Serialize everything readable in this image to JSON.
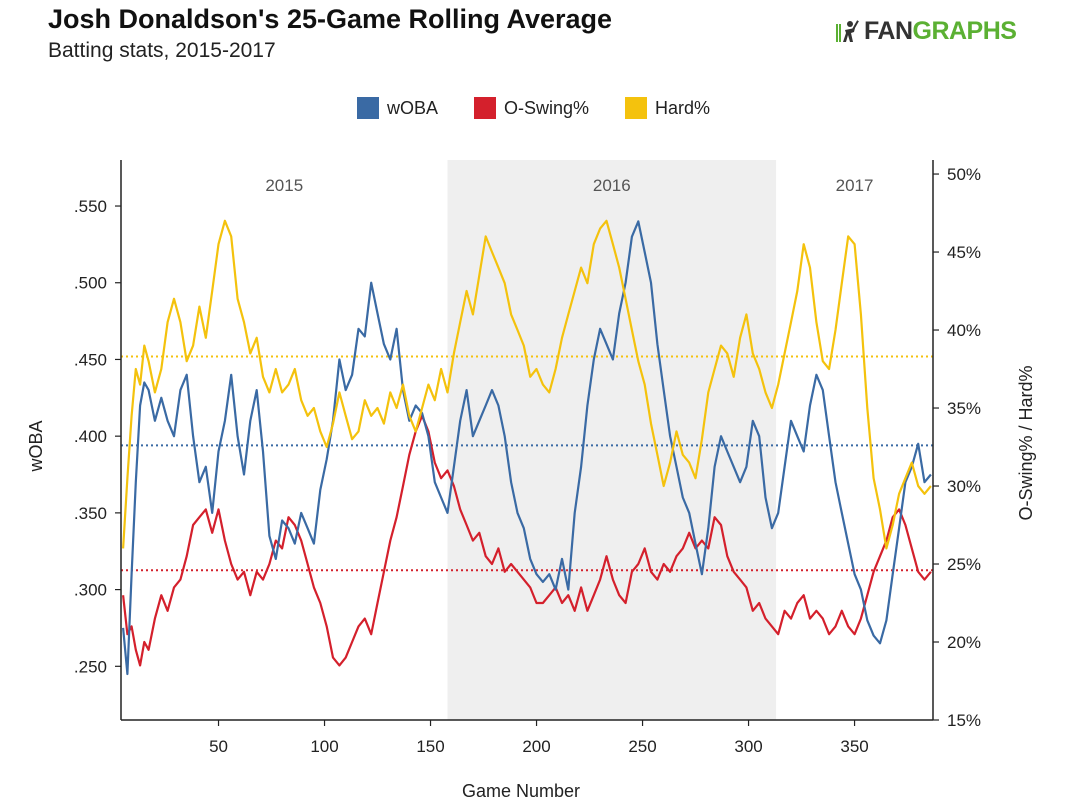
{
  "title": "Josh Donaldson's 25-Game Rolling Average",
  "subtitle": "Batting stats, 2015-2017",
  "logo": {
    "fan": "FAN",
    "graphs": "GRAPHS"
  },
  "colors": {
    "woba": "#3a6aa4",
    "oswing": "#d4202c",
    "hard": "#f4c20d",
    "shade": "#efefef"
  },
  "chart_data": {
    "type": "line",
    "xlabel": "Game Number",
    "ylabel_left": "wOBA",
    "ylabel_right": "O-Swing% / Hard%",
    "xlim": [
      4,
      387
    ],
    "ylim_left": [
      0.215,
      0.58
    ],
    "ylim_right": [
      15,
      50.9
    ],
    "x_ticks": [
      50,
      100,
      150,
      200,
      250,
      300,
      350
    ],
    "y_ticks_left": [
      ".250",
      ".300",
      ".350",
      ".400",
      ".450",
      ".500",
      ".550"
    ],
    "y_ticks_right": [
      "15%",
      "20%",
      "25%",
      "30%",
      "35%",
      "40%",
      "45%",
      "50%"
    ],
    "grid": false,
    "legend_position": "top",
    "seasons": [
      {
        "label": "2015",
        "start": 4,
        "end": 158,
        "shaded": false
      },
      {
        "label": "2016",
        "start": 158,
        "end": 313,
        "shaded": true
      },
      {
        "label": "2017",
        "start": 313,
        "end": 387,
        "shaded": false
      }
    ],
    "reference_lines": [
      {
        "series": "wOBA",
        "axis": "left",
        "value": 0.394
      },
      {
        "series": "O-Swing%",
        "axis": "right",
        "value": 24.6
      },
      {
        "series": "Hard%",
        "axis": "right",
        "value": 38.3
      }
    ],
    "series": [
      {
        "name": "wOBA",
        "axis": "left",
        "x": [
          5,
          7,
          9,
          11,
          13,
          15,
          17,
          20,
          23,
          26,
          29,
          32,
          35,
          38,
          41,
          44,
          47,
          50,
          53,
          56,
          59,
          62,
          65,
          68,
          71,
          74,
          77,
          80,
          83,
          86,
          89,
          92,
          95,
          98,
          101,
          104,
          107,
          110,
          113,
          116,
          119,
          122,
          125,
          128,
          131,
          134,
          137,
          140,
          143,
          146,
          149,
          152,
          155,
          158,
          161,
          164,
          167,
          170,
          173,
          176,
          179,
          182,
          185,
          188,
          191,
          194,
          197,
          200,
          203,
          206,
          209,
          212,
          215,
          218,
          221,
          224,
          227,
          230,
          233,
          236,
          239,
          242,
          245,
          248,
          251,
          254,
          257,
          260,
          263,
          266,
          269,
          272,
          275,
          278,
          281,
          284,
          287,
          290,
          293,
          296,
          299,
          302,
          305,
          308,
          311,
          314,
          317,
          320,
          323,
          326,
          329,
          332,
          335,
          338,
          341,
          344,
          347,
          350,
          353,
          356,
          359,
          362,
          365,
          368,
          371,
          374,
          377,
          380,
          383,
          386
        ],
        "values": [
          0.275,
          0.245,
          0.31,
          0.37,
          0.42,
          0.435,
          0.43,
          0.41,
          0.425,
          0.41,
          0.4,
          0.43,
          0.44,
          0.4,
          0.37,
          0.38,
          0.35,
          0.39,
          0.41,
          0.44,
          0.4,
          0.375,
          0.41,
          0.43,
          0.39,
          0.335,
          0.32,
          0.345,
          0.34,
          0.33,
          0.35,
          0.34,
          0.33,
          0.365,
          0.385,
          0.41,
          0.45,
          0.43,
          0.44,
          0.47,
          0.465,
          0.5,
          0.48,
          0.46,
          0.45,
          0.47,
          0.43,
          0.41,
          0.42,
          0.415,
          0.4,
          0.37,
          0.36,
          0.35,
          0.38,
          0.41,
          0.43,
          0.4,
          0.41,
          0.42,
          0.43,
          0.42,
          0.4,
          0.37,
          0.35,
          0.34,
          0.32,
          0.31,
          0.305,
          0.31,
          0.3,
          0.32,
          0.3,
          0.35,
          0.38,
          0.42,
          0.45,
          0.47,
          0.46,
          0.45,
          0.48,
          0.5,
          0.53,
          0.54,
          0.52,
          0.5,
          0.46,
          0.43,
          0.4,
          0.38,
          0.36,
          0.35,
          0.33,
          0.31,
          0.34,
          0.38,
          0.4,
          0.39,
          0.38,
          0.37,
          0.38,
          0.41,
          0.4,
          0.36,
          0.34,
          0.35,
          0.38,
          0.41,
          0.4,
          0.39,
          0.42,
          0.44,
          0.43,
          0.4,
          0.37,
          0.35,
          0.33,
          0.31,
          0.3,
          0.28,
          0.27,
          0.265,
          0.28,
          0.31,
          0.34,
          0.37,
          0.38,
          0.395,
          0.37,
          0.375
        ]
      },
      {
        "name": "O-Swing%",
        "axis": "right",
        "x": [
          5,
          7,
          9,
          11,
          13,
          15,
          17,
          20,
          23,
          26,
          29,
          32,
          35,
          38,
          41,
          44,
          47,
          50,
          53,
          56,
          59,
          62,
          65,
          68,
          71,
          74,
          77,
          80,
          83,
          86,
          89,
          92,
          95,
          98,
          101,
          104,
          107,
          110,
          113,
          116,
          119,
          122,
          125,
          128,
          131,
          134,
          137,
          140,
          143,
          146,
          149,
          152,
          155,
          158,
          161,
          164,
          167,
          170,
          173,
          176,
          179,
          182,
          185,
          188,
          191,
          194,
          197,
          200,
          203,
          206,
          209,
          212,
          215,
          218,
          221,
          224,
          227,
          230,
          233,
          236,
          239,
          242,
          245,
          248,
          251,
          254,
          257,
          260,
          263,
          266,
          269,
          272,
          275,
          278,
          281,
          284,
          287,
          290,
          293,
          296,
          299,
          302,
          305,
          308,
          311,
          314,
          317,
          320,
          323,
          326,
          329,
          332,
          335,
          338,
          341,
          344,
          347,
          350,
          353,
          356,
          359,
          362,
          365,
          368,
          371,
          374,
          377,
          380,
          383,
          386
        ],
        "values": [
          23.0,
          20.5,
          21.0,
          19.5,
          18.5,
          20.0,
          19.5,
          21.5,
          23.0,
          22.0,
          23.5,
          24.0,
          25.5,
          27.5,
          28.0,
          28.5,
          27.0,
          28.5,
          26.5,
          25.0,
          24.0,
          24.5,
          23.0,
          24.5,
          24.0,
          25.0,
          26.5,
          26.0,
          28.0,
          27.5,
          26.5,
          25.0,
          23.5,
          22.5,
          21.0,
          19.0,
          18.5,
          19.0,
          20.0,
          21.0,
          21.5,
          20.5,
          22.5,
          24.5,
          26.5,
          28.0,
          30.0,
          32.0,
          33.5,
          34.5,
          33.5,
          31.5,
          30.5,
          31.0,
          30.0,
          28.5,
          27.5,
          26.5,
          27.0,
          25.5,
          25.0,
          26.0,
          24.5,
          25.0,
          24.5,
          24.0,
          23.5,
          22.5,
          22.5,
          23.0,
          23.5,
          22.5,
          23.0,
          22.0,
          23.5,
          22.0,
          23.0,
          24.0,
          25.5,
          24.0,
          23.0,
          22.5,
          24.5,
          25.0,
          26.0,
          24.5,
          24.0,
          25.0,
          24.5,
          25.5,
          26.0,
          27.0,
          26.0,
          26.5,
          26.0,
          28.0,
          27.5,
          25.5,
          24.5,
          24.0,
          23.5,
          22.0,
          22.5,
          21.5,
          21.0,
          20.5,
          22.0,
          21.5,
          22.5,
          23.0,
          21.5,
          22.0,
          21.5,
          20.5,
          21.0,
          22.0,
          21.0,
          20.5,
          21.5,
          23.0,
          24.5,
          25.5,
          26.5,
          28.0,
          28.5,
          27.5,
          26.0,
          24.5,
          24.0,
          24.5
        ]
      },
      {
        "name": "Hard%",
        "axis": "right",
        "x": [
          5,
          7,
          9,
          11,
          13,
          15,
          17,
          20,
          23,
          26,
          29,
          32,
          35,
          38,
          41,
          44,
          47,
          50,
          53,
          56,
          59,
          62,
          65,
          68,
          71,
          74,
          77,
          80,
          83,
          86,
          89,
          92,
          95,
          98,
          101,
          104,
          107,
          110,
          113,
          116,
          119,
          122,
          125,
          128,
          131,
          134,
          137,
          140,
          143,
          146,
          149,
          152,
          155,
          158,
          161,
          164,
          167,
          170,
          173,
          176,
          179,
          182,
          185,
          188,
          191,
          194,
          197,
          200,
          203,
          206,
          209,
          212,
          215,
          218,
          221,
          224,
          227,
          230,
          233,
          236,
          239,
          242,
          245,
          248,
          251,
          254,
          257,
          260,
          263,
          266,
          269,
          272,
          275,
          278,
          281,
          284,
          287,
          290,
          293,
          296,
          299,
          302,
          305,
          308,
          311,
          314,
          317,
          320,
          323,
          326,
          329,
          332,
          335,
          338,
          341,
          344,
          347,
          350,
          353,
          356,
          359,
          362,
          365,
          368,
          371,
          374,
          377,
          380,
          383,
          386
        ],
        "values": [
          26.0,
          30.5,
          34.5,
          37.5,
          36.5,
          39.0,
          38.0,
          36.0,
          37.5,
          40.5,
          42.0,
          40.5,
          38.0,
          39.0,
          41.5,
          39.5,
          42.5,
          45.5,
          47.0,
          46.0,
          42.0,
          40.5,
          38.5,
          39.5,
          37.0,
          36.0,
          37.5,
          36.0,
          36.5,
          37.5,
          35.5,
          34.5,
          35.0,
          33.5,
          32.5,
          34.0,
          36.0,
          34.5,
          33.0,
          33.5,
          35.5,
          34.5,
          35.0,
          34.0,
          36.0,
          35.0,
          36.5,
          34.5,
          33.5,
          35.0,
          36.5,
          35.5,
          37.5,
          36.0,
          38.5,
          40.5,
          42.5,
          41.0,
          43.5,
          46.0,
          45.0,
          44.0,
          43.0,
          41.0,
          40.0,
          39.0,
          37.0,
          37.5,
          36.5,
          36.0,
          37.5,
          39.5,
          41.0,
          42.5,
          44.0,
          43.0,
          45.5,
          46.5,
          47.0,
          45.5,
          44.0,
          42.0,
          40.0,
          38.0,
          36.5,
          34.0,
          32.0,
          30.0,
          31.5,
          33.5,
          32.0,
          31.5,
          30.5,
          33.0,
          36.0,
          37.5,
          39.0,
          38.5,
          37.0,
          39.5,
          41.0,
          38.5,
          37.5,
          36.0,
          35.0,
          36.5,
          38.5,
          40.5,
          42.5,
          45.5,
          44.0,
          40.5,
          38.0,
          37.5,
          40.0,
          43.0,
          46.0,
          45.5,
          41.0,
          35.0,
          30.5,
          28.5,
          26.0,
          27.5,
          29.5,
          30.5,
          31.5,
          30.0,
          29.5,
          30.0
        ]
      }
    ]
  }
}
